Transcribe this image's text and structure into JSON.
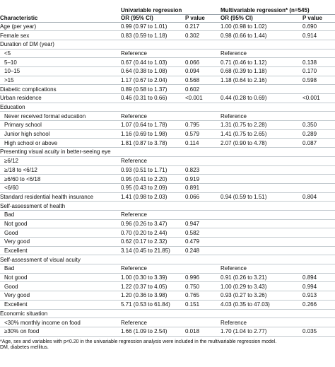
{
  "headers": {
    "characteristic": "Characteristic",
    "univariable": "Univariable regression",
    "multivariable": "Multivariable regression* (n=545)",
    "or": "OR (95% CI)",
    "p": "P value"
  },
  "rows": [
    {
      "label": "Age (per year)",
      "indent": false,
      "u_or": "0.99 (0.97 to 1.01)",
      "u_p": "0.217",
      "m_or": "1.00 (0.98 to 1.02)",
      "m_p": "0.690"
    },
    {
      "label": "Female sex",
      "indent": false,
      "u_or": "0.83 (0.59 to 1.18)",
      "u_p": "0.302",
      "m_or": "0.98 (0.66 to 1.44)",
      "m_p": "0.914"
    },
    {
      "label": "Duration of DM (year)",
      "indent": false,
      "u_or": "",
      "u_p": "",
      "m_or": "",
      "m_p": ""
    },
    {
      "label": "<5",
      "indent": true,
      "u_or": "Reference",
      "u_p": "",
      "m_or": "Reference",
      "m_p": ""
    },
    {
      "label": "5–10",
      "indent": true,
      "u_or": "0.67 (0.44 to 1.03)",
      "u_p": "0.066",
      "m_or": "0.71 (0.46 to 1.12)",
      "m_p": "0.138"
    },
    {
      "label": "10–15",
      "indent": true,
      "u_or": "0.64 (0.38 to 1.08)",
      "u_p": "0.094",
      "m_or": "0.68 (0.39 to 1.18)",
      "m_p": "0.170"
    },
    {
      "label": ">15",
      "indent": true,
      "u_or": "1.17 (0.67 to 2.04)",
      "u_p": "0.568",
      "m_or": "1.18 (0.64 to 2.16)",
      "m_p": "0.598"
    },
    {
      "label": "Diabetic complications",
      "indent": false,
      "u_or": "0.89 (0.58 to 1.37)",
      "u_p": "0.602",
      "m_or": "",
      "m_p": ""
    },
    {
      "label": "Urban residence",
      "indent": false,
      "u_or": "0.46 (0.31 to 0.66)",
      "u_p": "<0.001",
      "m_or": "0.44 (0.28 to 0.69)",
      "m_p": "<0.001"
    },
    {
      "label": "Education",
      "indent": false,
      "u_or": "",
      "u_p": "",
      "m_or": "",
      "m_p": ""
    },
    {
      "label": "Never received formal education",
      "indent": true,
      "u_or": "Reference",
      "u_p": "",
      "m_or": "Reference",
      "m_p": ""
    },
    {
      "label": "Primary school",
      "indent": true,
      "u_or": "1.07 (0.64 to 1.78)",
      "u_p": "0.795",
      "m_or": "1.31 (0.75 to 2.28)",
      "m_p": "0.350"
    },
    {
      "label": "Junior high school",
      "indent": true,
      "u_or": "1.16 (0.69 to 1.98)",
      "u_p": "0.579",
      "m_or": "1.41 (0.75 to 2.65)",
      "m_p": "0.289"
    },
    {
      "label": "High school or above",
      "indent": true,
      "u_or": "1.81 (0.87 to 3.78)",
      "u_p": "0.114",
      "m_or": "2.07 (0.90 to 4.78)",
      "m_p": "0.087"
    },
    {
      "label": "Presenting visual acuity in better-seeing eye",
      "indent": false,
      "u_or": "",
      "u_p": "",
      "m_or": "",
      "m_p": ""
    },
    {
      "label": "≥6/12",
      "indent": true,
      "u_or": "Reference",
      "u_p": "",
      "m_or": "",
      "m_p": ""
    },
    {
      "label": "≥/18 to <6/12",
      "indent": true,
      "u_or": "0.93 (0.51 to 1.71)",
      "u_p": "0.823",
      "m_or": "",
      "m_p": ""
    },
    {
      "label": "≥6/60 to <6/18",
      "indent": true,
      "u_or": "0.95 (0.41 to 2.20)",
      "u_p": "0.919",
      "m_or": "",
      "m_p": ""
    },
    {
      "label": "<6/60",
      "indent": true,
      "u_or": "0.95 (0.43 to 2.09)",
      "u_p": "0.891",
      "m_or": "",
      "m_p": ""
    },
    {
      "label": "Standard residential health insurance",
      "indent": false,
      "u_or": "1.41 (0.98 to 2.03)",
      "u_p": "0.066",
      "m_or": "0.94 (0.59 to 1.51)",
      "m_p": "0.804"
    },
    {
      "label": "Self-assessment of health",
      "indent": false,
      "u_or": "",
      "u_p": "",
      "m_or": "",
      "m_p": ""
    },
    {
      "label": "Bad",
      "indent": true,
      "u_or": "Reference",
      "u_p": "",
      "m_or": "",
      "m_p": ""
    },
    {
      "label": "Not good",
      "indent": true,
      "u_or": "0.96 (0.26 to 3.47)",
      "u_p": "0.947",
      "m_or": "",
      "m_p": ""
    },
    {
      "label": "Good",
      "indent": true,
      "u_or": "0.70 (0.20 to 2.44)",
      "u_p": "0.582",
      "m_or": "",
      "m_p": ""
    },
    {
      "label": "Very good",
      "indent": true,
      "u_or": "0.62 (0.17 to 2.32)",
      "u_p": "0.479",
      "m_or": "",
      "m_p": ""
    },
    {
      "label": "Excellent",
      "indent": true,
      "u_or": "3.14 (0.45 to 21.85)",
      "u_p": "0.248",
      "m_or": "",
      "m_p": ""
    },
    {
      "label": "Self-assessment of visual acuity",
      "indent": false,
      "u_or": "",
      "u_p": "",
      "m_or": "",
      "m_p": ""
    },
    {
      "label": "Bad",
      "indent": true,
      "u_or": "Reference",
      "u_p": "",
      "m_or": "Reference",
      "m_p": ""
    },
    {
      "label": "Not good",
      "indent": true,
      "u_or": "1.00 (0.30 to 3.39)",
      "u_p": "0.996",
      "m_or": "0.91 (0.26 to 3.21)",
      "m_p": "0.894"
    },
    {
      "label": "Good",
      "indent": true,
      "u_or": "1.22 (0.37 to 4.05)",
      "u_p": "0.750",
      "m_or": "1.00 (0.29 to 3.43)",
      "m_p": "0.994"
    },
    {
      "label": "Very good",
      "indent": true,
      "u_or": "1.20 (0.36 to 3.98)",
      "u_p": "0.765",
      "m_or": "0.93 (0.27 to 3.26)",
      "m_p": "0.913"
    },
    {
      "label": "Excellent",
      "indent": true,
      "u_or": "5.71 (0.53 to 61.84)",
      "u_p": "0.151",
      "m_or": "4.03 (0.35 to 47.03)",
      "m_p": "0.266"
    },
    {
      "label": "Economic situation",
      "indent": false,
      "u_or": "",
      "u_p": "",
      "m_or": "",
      "m_p": ""
    },
    {
      "label": "<30% monthly income on food",
      "indent": true,
      "u_or": "Reference",
      "u_p": "",
      "m_or": "Reference",
      "m_p": ""
    },
    {
      "label": "≥30% on food",
      "indent": true,
      "u_or": "1.66 (1.09 to 2.54)",
      "u_p": "0.018",
      "m_or": "1.70 (1.04 to 2.77)",
      "m_p": "0.035"
    }
  ],
  "footnotes": [
    "*Age, sex and variables with p<0.20 in the univariable regression analysis were included in the multivariable regression model.",
    "DM, diabetes mellitus."
  ]
}
